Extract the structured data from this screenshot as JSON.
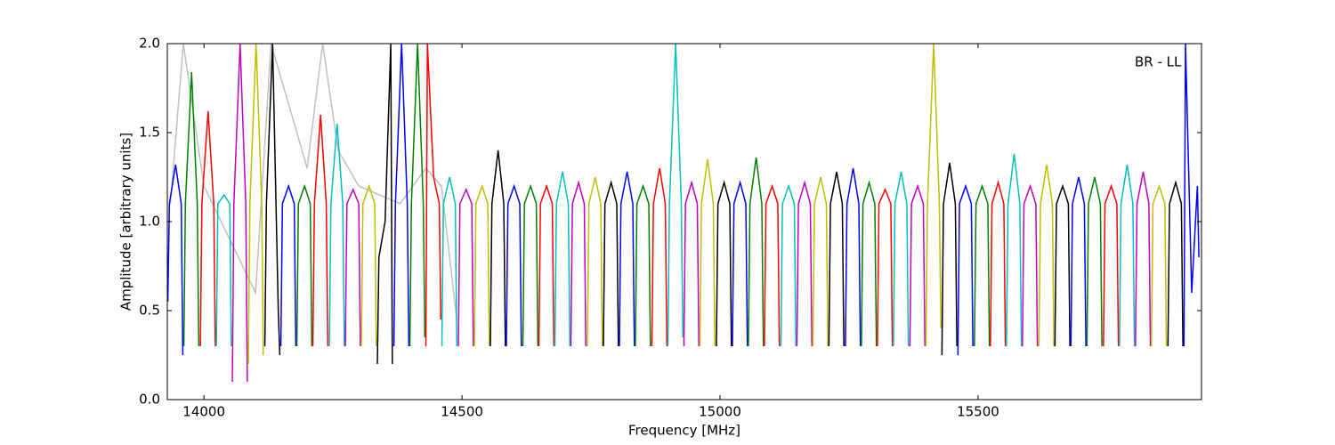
{
  "chart_data": {
    "type": "line",
    "xlabel": "Frequency [MHz]",
    "ylabel": "Amplitude [arbitrary units]",
    "annotation": "BR - LL",
    "xlim": [
      13929,
      15933
    ],
    "ylim": [
      0,
      2
    ],
    "xticks": [
      14000,
      14500,
      15000,
      15500
    ],
    "yticks": [
      {
        "value": 0,
        "label": "0.0"
      },
      0.5,
      {
        "value": 1,
        "label": "1.0"
      },
      1.5,
      {
        "value": 2,
        "label": "2.0"
      }
    ],
    "series": [
      {
        "color": "#c0c0c0",
        "x": [
          13935,
          13960,
          14000,
          14100,
          14130,
          14200,
          14230,
          14260,
          14300,
          14380,
          14430,
          14460,
          14490
        ],
        "values": [
          1.1,
          2.0,
          1.2,
          0.6,
          2.0,
          1.3,
          2.0,
          1.4,
          1.2,
          1.1,
          1.3,
          1.2,
          0.45
        ]
      },
      {
        "color": "#0000ff",
        "x": [
          13930,
          13933,
          13945,
          13956,
          13959
        ],
        "values": [
          0.55,
          1.1,
          1.32,
          1.1,
          0.25
        ]
      },
      {
        "color": "#008000",
        "x": [
          13961,
          13964,
          13976,
          13987,
          13990
        ],
        "values": [
          0.3,
          1.1,
          1.84,
          1.1,
          0.3
        ]
      },
      {
        "color": "#ff0000",
        "x": [
          13993,
          13996,
          14008,
          14019,
          14022
        ],
        "values": [
          0.3,
          1.1,
          1.62,
          1.1,
          0.3
        ]
      },
      {
        "color": "#00bfbf",
        "x": [
          14024,
          14027,
          14039,
          14050,
          14053
        ],
        "values": [
          0.3,
          1.1,
          1.15,
          1.1,
          0.3
        ]
      },
      {
        "color": "#bf00bf",
        "x": [
          14055,
          14058,
          14070,
          14081,
          14084
        ],
        "values": [
          0.1,
          1.1,
          2.0,
          1.1,
          0.1
        ]
      },
      {
        "color": "#bfbf00",
        "x": [
          14086,
          14089,
          14101,
          14112,
          14115
        ],
        "values": [
          0.2,
          1.1,
          2.0,
          1.1,
          0.25
        ]
      },
      {
        "color": "#000000",
        "x": [
          14118,
          14121,
          14133,
          14144,
          14147
        ],
        "values": [
          0.3,
          1.1,
          2.0,
          0.5,
          0.25
        ]
      },
      {
        "color": "#0000ff",
        "x": [
          14149,
          14152,
          14164,
          14175,
          14178
        ],
        "values": [
          0.3,
          1.1,
          1.2,
          1.1,
          0.3
        ]
      },
      {
        "color": "#008000",
        "x": [
          14180,
          14183,
          14195,
          14206,
          14209
        ],
        "values": [
          0.3,
          1.1,
          1.2,
          1.1,
          0.3
        ]
      },
      {
        "color": "#ff0000",
        "x": [
          14211,
          14214,
          14226,
          14237,
          14240
        ],
        "values": [
          0.3,
          1.1,
          1.6,
          1.1,
          0.3
        ]
      },
      {
        "color": "#00bfbf",
        "x": [
          14243,
          14246,
          14258,
          14269,
          14272
        ],
        "values": [
          0.3,
          1.1,
          1.55,
          1.1,
          0.3
        ]
      },
      {
        "color": "#bf00bf",
        "x": [
          14274,
          14277,
          14289,
          14300,
          14303
        ],
        "values": [
          0.3,
          1.1,
          1.18,
          1.1,
          0.3
        ]
      },
      {
        "color": "#bfbf00",
        "x": [
          14305,
          14308,
          14320,
          14331,
          14334
        ],
        "values": [
          0.3,
          1.1,
          1.2,
          1.1,
          0.3
        ]
      },
      {
        "color": "#000000",
        "x": [
          14336,
          14339,
          14351,
          14362,
          14365
        ],
        "values": [
          0.2,
          0.8,
          1.0,
          2.0,
          0.2
        ]
      },
      {
        "color": "#0000ff",
        "x": [
          14368,
          14371,
          14383,
          14394,
          14397
        ],
        "values": [
          0.3,
          1.1,
          2.0,
          1.1,
          0.3
        ]
      },
      {
        "color": "#008000",
        "x": [
          14399,
          14402,
          14414,
          14425,
          14428
        ],
        "values": [
          0.3,
          1.1,
          2.0,
          1.1,
          0.35
        ]
      },
      {
        "color": "#ff0000",
        "x": [
          14430,
          14433,
          14445,
          14456,
          14459
        ],
        "values": [
          0.3,
          2.0,
          1.25,
          1.1,
          0.45
        ]
      },
      {
        "color": "#00bfbf",
        "x": [
          14461,
          14464,
          14476,
          14487,
          14490
        ],
        "values": [
          0.3,
          1.1,
          1.25,
          1.1,
          0.3
        ]
      },
      {
        "color": "#bf00bf",
        "x": [
          14493,
          14496,
          14508,
          14519,
          14522
        ],
        "values": [
          0.3,
          1.1,
          1.18,
          1.1,
          0.3
        ]
      },
      {
        "color": "#bfbf00",
        "x": [
          14524,
          14527,
          14539,
          14550,
          14553
        ],
        "values": [
          0.3,
          1.1,
          1.2,
          1.1,
          0.3
        ]
      },
      {
        "color": "#000000",
        "x": [
          14555,
          14558,
          14570,
          14581,
          14584
        ],
        "values": [
          0.3,
          1.1,
          1.4,
          1.1,
          0.3
        ]
      },
      {
        "color": "#0000ff",
        "x": [
          14586,
          14589,
          14601,
          14612,
          14615
        ],
        "values": [
          0.3,
          1.1,
          1.2,
          1.1,
          0.3
        ]
      },
      {
        "color": "#008000",
        "x": [
          14618,
          14621,
          14633,
          14644,
          14647
        ],
        "values": [
          0.3,
          1.1,
          1.2,
          1.1,
          0.3
        ]
      },
      {
        "color": "#ff0000",
        "x": [
          14649,
          14652,
          14664,
          14675,
          14678
        ],
        "values": [
          0.3,
          1.1,
          1.2,
          1.1,
          0.3
        ]
      },
      {
        "color": "#00bfbf",
        "x": [
          14680,
          14683,
          14695,
          14706,
          14709
        ],
        "values": [
          0.3,
          1.1,
          1.28,
          1.1,
          0.3
        ]
      },
      {
        "color": "#bf00bf",
        "x": [
          14711,
          14714,
          14726,
          14737,
          14740
        ],
        "values": [
          0.3,
          1.1,
          1.22,
          1.1,
          0.3
        ]
      },
      {
        "color": "#bfbf00",
        "x": [
          14743,
          14746,
          14758,
          14769,
          14772
        ],
        "values": [
          0.3,
          1.1,
          1.25,
          1.1,
          0.3
        ]
      },
      {
        "color": "#000000",
        "x": [
          14774,
          14777,
          14789,
          14800,
          14803
        ],
        "values": [
          0.3,
          1.1,
          1.22,
          1.1,
          0.3
        ]
      },
      {
        "color": "#0000ff",
        "x": [
          14805,
          14808,
          14820,
          14831,
          14834
        ],
        "values": [
          0.3,
          1.1,
          1.28,
          1.1,
          0.3
        ]
      },
      {
        "color": "#008000",
        "x": [
          14836,
          14839,
          14851,
          14862,
          14865
        ],
        "values": [
          0.3,
          1.1,
          1.2,
          1.1,
          0.3
        ]
      },
      {
        "color": "#ff0000",
        "x": [
          14868,
          14871,
          14883,
          14894,
          14897
        ],
        "values": [
          0.3,
          1.1,
          1.3,
          1.1,
          0.3
        ]
      },
      {
        "color": "#00bfbf",
        "x": [
          14899,
          14902,
          14914,
          14925,
          14928
        ],
        "values": [
          0.3,
          1.1,
          2.0,
          1.1,
          0.35
        ]
      },
      {
        "color": "#bf00bf",
        "x": [
          14930,
          14933,
          14945,
          14956,
          14959
        ],
        "values": [
          0.3,
          1.1,
          1.22,
          1.1,
          0.3
        ]
      },
      {
        "color": "#bfbf00",
        "x": [
          14961,
          14964,
          14976,
          14987,
          14990
        ],
        "values": [
          0.3,
          1.1,
          1.35,
          1.1,
          0.3
        ]
      },
      {
        "color": "#000000",
        "x": [
          14993,
          14996,
          15008,
          15019,
          15022
        ],
        "values": [
          0.3,
          1.1,
          1.22,
          1.1,
          0.3
        ]
      },
      {
        "color": "#0000ff",
        "x": [
          15024,
          15027,
          15039,
          15050,
          15053
        ],
        "values": [
          0.3,
          1.1,
          1.22,
          1.1,
          0.3
        ]
      },
      {
        "color": "#008000",
        "x": [
          15055,
          15058,
          15070,
          15081,
          15084
        ],
        "values": [
          0.3,
          1.1,
          1.36,
          1.1,
          0.3
        ]
      },
      {
        "color": "#ff0000",
        "x": [
          15086,
          15089,
          15101,
          15112,
          15115
        ],
        "values": [
          0.3,
          1.1,
          1.2,
          1.1,
          0.3
        ]
      },
      {
        "color": "#00bfbf",
        "x": [
          15118,
          15121,
          15133,
          15144,
          15147
        ],
        "values": [
          0.3,
          1.1,
          1.2,
          1.1,
          0.3
        ]
      },
      {
        "color": "#bf00bf",
        "x": [
          15149,
          15152,
          15164,
          15175,
          15178
        ],
        "values": [
          0.3,
          1.1,
          1.22,
          1.1,
          0.3
        ]
      },
      {
        "color": "#bfbf00",
        "x": [
          15180,
          15183,
          15195,
          15206,
          15209
        ],
        "values": [
          0.3,
          1.1,
          1.25,
          1.1,
          0.3
        ]
      },
      {
        "color": "#000000",
        "x": [
          15211,
          15214,
          15226,
          15237,
          15240
        ],
        "values": [
          0.3,
          1.1,
          1.28,
          1.1,
          0.3
        ]
      },
      {
        "color": "#0000ff",
        "x": [
          15243,
          15246,
          15258,
          15269,
          15272
        ],
        "values": [
          0.3,
          1.1,
          1.3,
          1.1,
          0.3
        ]
      },
      {
        "color": "#008000",
        "x": [
          15274,
          15277,
          15289,
          15300,
          15303
        ],
        "values": [
          0.3,
          1.1,
          1.22,
          1.1,
          0.3
        ]
      },
      {
        "color": "#ff0000",
        "x": [
          15305,
          15308,
          15320,
          15331,
          15334
        ],
        "values": [
          0.3,
          1.1,
          1.18,
          1.1,
          0.3
        ]
      },
      {
        "color": "#00bfbf",
        "x": [
          15336,
          15339,
          15351,
          15362,
          15365
        ],
        "values": [
          0.3,
          1.1,
          1.28,
          1.1,
          0.3
        ]
      },
      {
        "color": "#bf00bf",
        "x": [
          15368,
          15371,
          15383,
          15394,
          15397
        ],
        "values": [
          0.3,
          1.1,
          1.2,
          1.1,
          0.3
        ]
      },
      {
        "color": "#bfbf00",
        "x": [
          15399,
          15402,
          15414,
          15425,
          15428
        ],
        "values": [
          0.3,
          1.1,
          2.0,
          1.1,
          0.4
        ]
      },
      {
        "color": "#000000",
        "x": [
          15430,
          15433,
          15445,
          15456,
          15459
        ],
        "values": [
          0.25,
          1.1,
          1.33,
          1.1,
          0.3
        ]
      },
      {
        "color": "#0000ff",
        "x": [
          15461,
          15464,
          15476,
          15487,
          15490
        ],
        "values": [
          0.25,
          1.1,
          1.2,
          1.1,
          0.3
        ]
      },
      {
        "color": "#008000",
        "x": [
          15493,
          15496,
          15508,
          15519,
          15522
        ],
        "values": [
          0.3,
          1.1,
          1.2,
          1.1,
          0.3
        ]
      },
      {
        "color": "#ff0000",
        "x": [
          15524,
          15527,
          15539,
          15550,
          15553
        ],
        "values": [
          0.3,
          1.1,
          1.22,
          1.1,
          0.3
        ]
      },
      {
        "color": "#00bfbf",
        "x": [
          15555,
          15558,
          15570,
          15581,
          15584
        ],
        "values": [
          0.3,
          1.1,
          1.38,
          1.1,
          0.3
        ]
      },
      {
        "color": "#bf00bf",
        "x": [
          15586,
          15589,
          15601,
          15612,
          15615
        ],
        "values": [
          0.3,
          1.1,
          1.2,
          1.1,
          0.3
        ]
      },
      {
        "color": "#bfbf00",
        "x": [
          15618,
          15621,
          15633,
          15644,
          15647
        ],
        "values": [
          0.3,
          1.1,
          1.32,
          1.1,
          0.3
        ]
      },
      {
        "color": "#000000",
        "x": [
          15649,
          15652,
          15664,
          15675,
          15678
        ],
        "values": [
          0.3,
          1.1,
          1.2,
          1.1,
          0.3
        ]
      },
      {
        "color": "#0000ff",
        "x": [
          15680,
          15683,
          15695,
          15706,
          15709
        ],
        "values": [
          0.3,
          1.1,
          1.25,
          1.1,
          0.3
        ]
      },
      {
        "color": "#008000",
        "x": [
          15711,
          15714,
          15726,
          15737,
          15740
        ],
        "values": [
          0.3,
          1.1,
          1.25,
          1.1,
          0.3
        ]
      },
      {
        "color": "#ff0000",
        "x": [
          15743,
          15746,
          15758,
          15769,
          15772
        ],
        "values": [
          0.3,
          1.1,
          1.2,
          1.1,
          0.3
        ]
      },
      {
        "color": "#00bfbf",
        "x": [
          15774,
          15777,
          15789,
          15800,
          15803
        ],
        "values": [
          0.3,
          1.1,
          1.32,
          1.1,
          0.3
        ]
      },
      {
        "color": "#bf00bf",
        "x": [
          15805,
          15808,
          15820,
          15831,
          15834
        ],
        "values": [
          0.3,
          1.1,
          1.28,
          1.1,
          0.3
        ]
      },
      {
        "color": "#bfbf00",
        "x": [
          15836,
          15839,
          15851,
          15862,
          15865
        ],
        "values": [
          0.3,
          1.1,
          1.2,
          1.1,
          0.3
        ]
      },
      {
        "color": "#000000",
        "x": [
          15868,
          15871,
          15883,
          15894,
          15897
        ],
        "values": [
          0.3,
          1.1,
          1.22,
          1.1,
          0.3
        ]
      },
      {
        "color": "#0000ff",
        "x": [
          15899,
          15902,
          15914,
          15925,
          15928
        ],
        "values": [
          0.3,
          2.0,
          0.6,
          1.2,
          0.8
        ]
      }
    ]
  }
}
